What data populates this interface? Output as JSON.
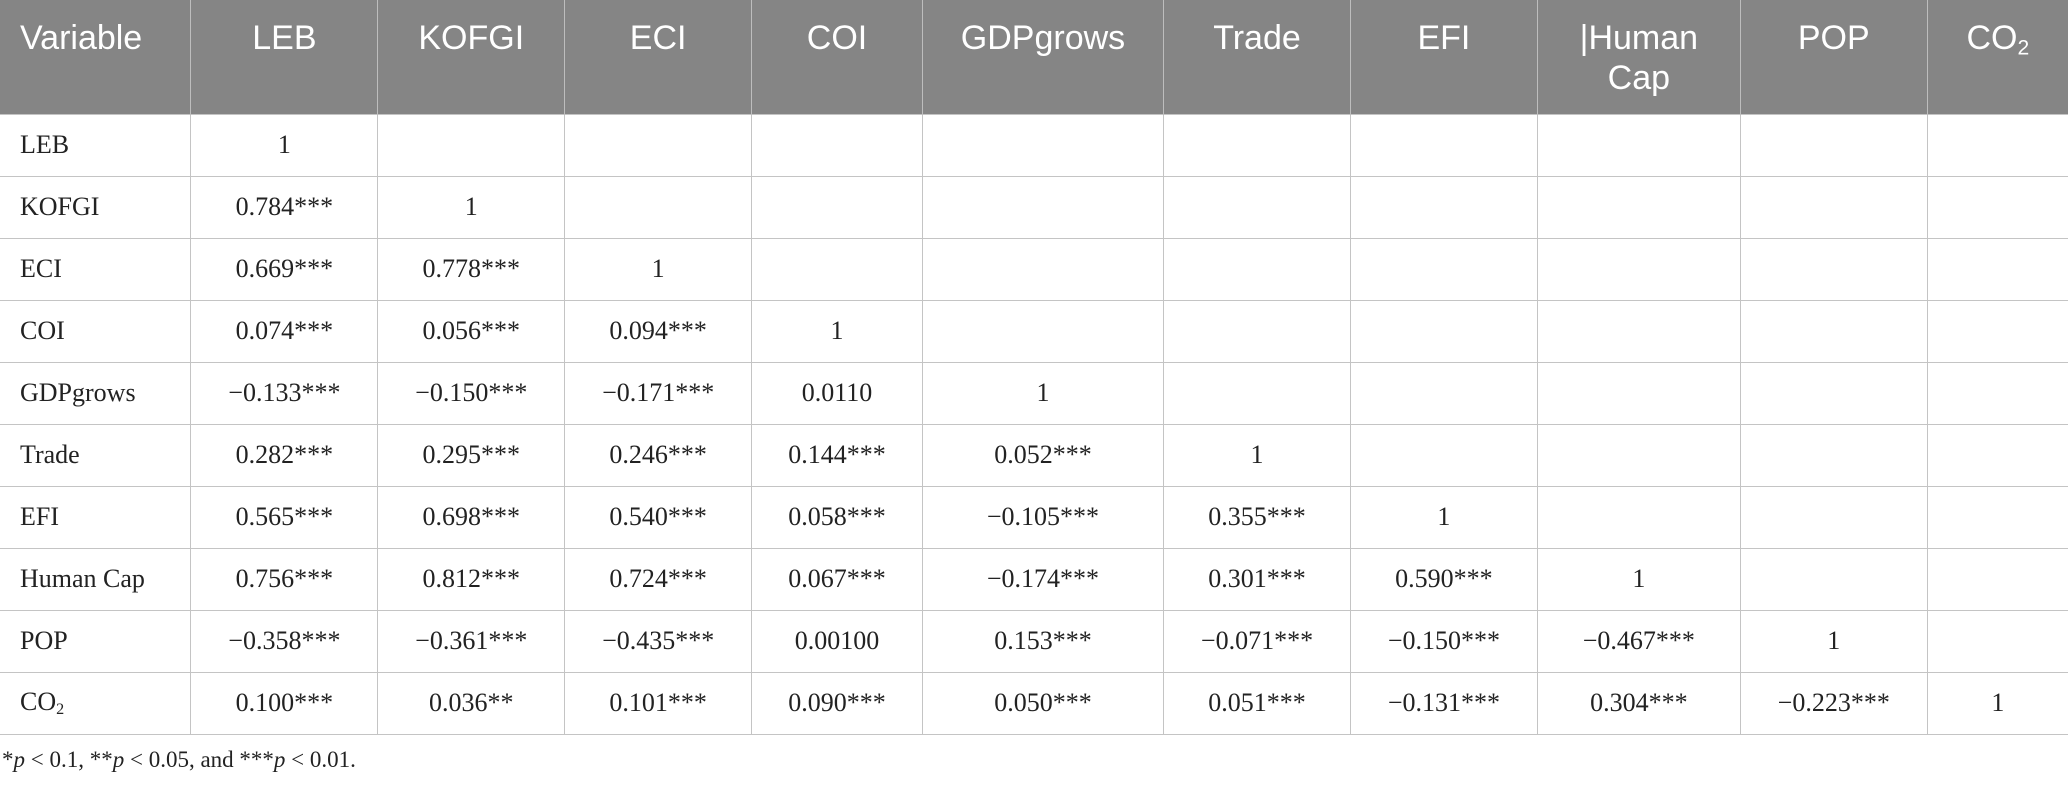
{
  "table": {
    "headers": [
      {
        "main": "Variable",
        "sub": ""
      },
      {
        "main": "LEB",
        "sub": ""
      },
      {
        "main": "KOFGI",
        "sub": ""
      },
      {
        "main": "ECI",
        "sub": ""
      },
      {
        "main": "COI",
        "sub": ""
      },
      {
        "main": "GDPgrows",
        "sub": ""
      },
      {
        "main": "Trade",
        "sub": ""
      },
      {
        "main": "EFI",
        "sub": ""
      },
      {
        "main": "|Human Cap",
        "sub": ""
      },
      {
        "main": "POP",
        "sub": ""
      },
      {
        "main": "CO",
        "sub": "2"
      }
    ],
    "rows": [
      {
        "label": "LEB",
        "label_sub": "",
        "cells": [
          "1",
          "",
          "",
          "",
          "",
          "",
          "",
          "",
          "",
          ""
        ]
      },
      {
        "label": "KOFGI",
        "label_sub": "",
        "cells": [
          "0.784***",
          "1",
          "",
          "",
          "",
          "",
          "",
          "",
          "",
          ""
        ]
      },
      {
        "label": "ECI",
        "label_sub": "",
        "cells": [
          "0.669***",
          "0.778***",
          "1",
          "",
          "",
          "",
          "",
          "",
          "",
          ""
        ]
      },
      {
        "label": "COI",
        "label_sub": "",
        "cells": [
          "0.074***",
          "0.056***",
          "0.094***",
          "1",
          "",
          "",
          "",
          "",
          "",
          ""
        ]
      },
      {
        "label": "GDPgrows",
        "label_sub": "",
        "cells": [
          "−0.133***",
          "−0.150***",
          "−0.171***",
          "0.0110",
          "1",
          "",
          "",
          "",
          "",
          ""
        ]
      },
      {
        "label": "Trade",
        "label_sub": "",
        "cells": [
          "0.282***",
          "0.295***",
          "0.246***",
          "0.144***",
          "0.052***",
          "1",
          "",
          "",
          "",
          ""
        ]
      },
      {
        "label": "EFI",
        "label_sub": "",
        "cells": [
          "0.565***",
          "0.698***",
          "0.540***",
          "0.058***",
          "−0.105***",
          "0.355***",
          "1",
          "",
          "",
          ""
        ]
      },
      {
        "label": "Human Cap",
        "label_sub": "",
        "cells": [
          "0.756***",
          "0.812***",
          "0.724***",
          "0.067***",
          "−0.174***",
          "0.301***",
          "0.590***",
          "1",
          "",
          ""
        ]
      },
      {
        "label": "POP",
        "label_sub": "",
        "cells": [
          "−0.358***",
          "−0.361***",
          "−0.435***",
          "0.00100",
          "0.153***",
          "−0.071***",
          "−0.150***",
          "−0.467***",
          "1",
          ""
        ]
      },
      {
        "label": "CO",
        "label_sub": "2",
        "cells": [
          "0.100***",
          "0.036**",
          "0.101***",
          "0.090***",
          "0.050***",
          "0.051***",
          "−0.131***",
          "0.304***",
          "−0.223***",
          "1"
        ]
      }
    ]
  },
  "footnote": {
    "star1": "*",
    "p1": "p",
    "t1": " < 0.1, ",
    "star2": "**",
    "p2": "p",
    "t2": " < 0.05, and ",
    "star3": "***",
    "p3": "p",
    "t3": " < 0.01."
  }
}
